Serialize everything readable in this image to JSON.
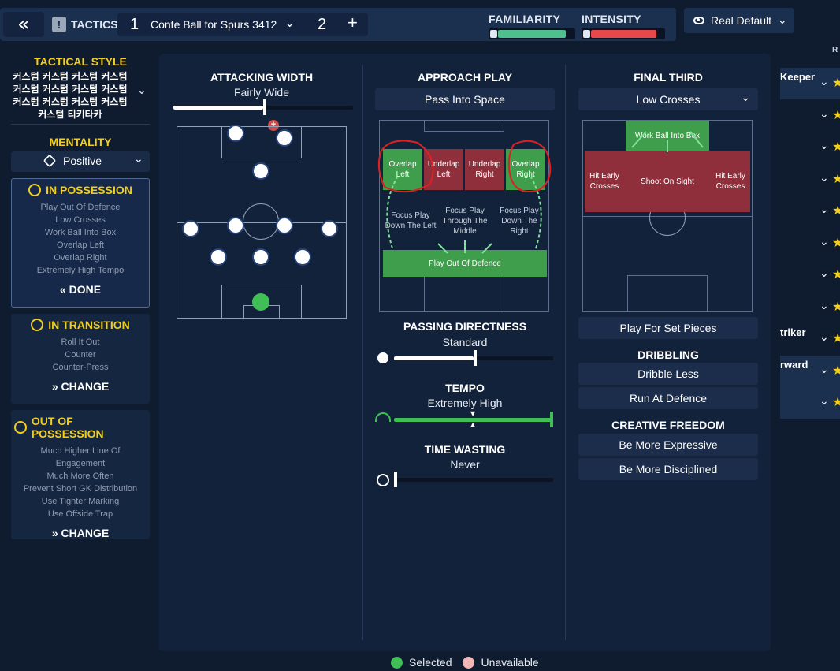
{
  "topbar": {
    "back_icon": "double-chevron-left-icon",
    "tactics_label": "TACTICS",
    "tactic_slot_1": "1",
    "tactic_name": "Conte Ball for Spurs 3412",
    "tactic_slot_2": "2",
    "add_label": "+",
    "familiarity_label": "FAMILIARITY",
    "familiarity_level": 0.9,
    "familiarity_color": "#4fc08d",
    "intensity_label": "INTENSITY",
    "intensity_level": 0.9,
    "intensity_color": "#e8474c",
    "view_select": "Real Default"
  },
  "sidebar": {
    "tactical_style_title": "TACTICAL STYLE",
    "tactical_style_value": "커스텀 커스텀 커스텀 커스텀 커스텀 커스텀 커스텀 커스텀 커스텀 커스텀 커스텀 커스텀 커스텀 티키타카",
    "mentality_title": "MENTALITY",
    "mentality_value": "Positive",
    "in_possession": {
      "title": "IN POSSESSION",
      "items": [
        "Play Out Of Defence",
        "Low Crosses",
        "Work Ball Into Box",
        "Overlap Left",
        "Overlap Right",
        "Extremely High Tempo"
      ],
      "action": "DONE"
    },
    "in_transition": {
      "title": "IN TRANSITION",
      "items": [
        "Roll It Out",
        "Counter",
        "Counter-Press"
      ],
      "action": "CHANGE"
    },
    "out_of_possession": {
      "title": "OUT OF POSSESSION",
      "items": [
        "Much Higher Line Of Engagement",
        "Much More Often",
        "Prevent Short GK Distribution",
        "Use Tighter Marking",
        "Use Offside Trap"
      ],
      "action": "CHANGE"
    }
  },
  "attacking_width": {
    "title": "ATTACKING WIDTH",
    "value": "Fairly Wide",
    "level": 0.5
  },
  "approach_play": {
    "title": "APPROACH PLAY",
    "select": "Pass Into Space",
    "zones": {
      "overlap_left": "Overlap Left",
      "underlap_left": "Underlap Left",
      "underlap_right": "Underlap Right",
      "overlap_right": "Overlap Right",
      "focus_left": "Focus Play Down The Left",
      "focus_middle": "Focus Play Through The Middle",
      "focus_right": "Focus Play Down The Right",
      "play_out": "Play Out Of Defence"
    }
  },
  "passing_directness": {
    "title": "PASSING DIRECTNESS",
    "value": "Standard",
    "level": 0.5
  },
  "tempo": {
    "title": "TEMPO",
    "value": "Extremely High",
    "level": 1.0
  },
  "time_wasting": {
    "title": "TIME WASTING",
    "value": "Never",
    "level": 0.0
  },
  "final_third": {
    "title": "FINAL THIRD",
    "select": "Low Crosses",
    "zones": {
      "work_ball": "Work Ball Into Box",
      "hit_early_left": "Hit Early Crosses",
      "shoot_on_sight": "Shoot On Sight",
      "hit_early_right": "Hit Early Crosses"
    },
    "set_pieces": "Play For Set Pieces"
  },
  "dribbling": {
    "title": "DRIBBLING",
    "options": [
      "Dribble Less",
      "Run At Defence"
    ]
  },
  "creative_freedom": {
    "title": "CREATIVE FREEDOM",
    "options": [
      "Be More Expressive",
      "Be More Disciplined"
    ]
  },
  "right_panel": {
    "header": "R",
    "rows": [
      "Keeper",
      "",
      "",
      "",
      "",
      "",
      "",
      "",
      "triker",
      "rward",
      ""
    ]
  },
  "legend": {
    "selected": "Selected",
    "unavailable": "Unavailable",
    "selected_color": "#3fbf56",
    "unavailable_color": "#f2b7b7"
  }
}
